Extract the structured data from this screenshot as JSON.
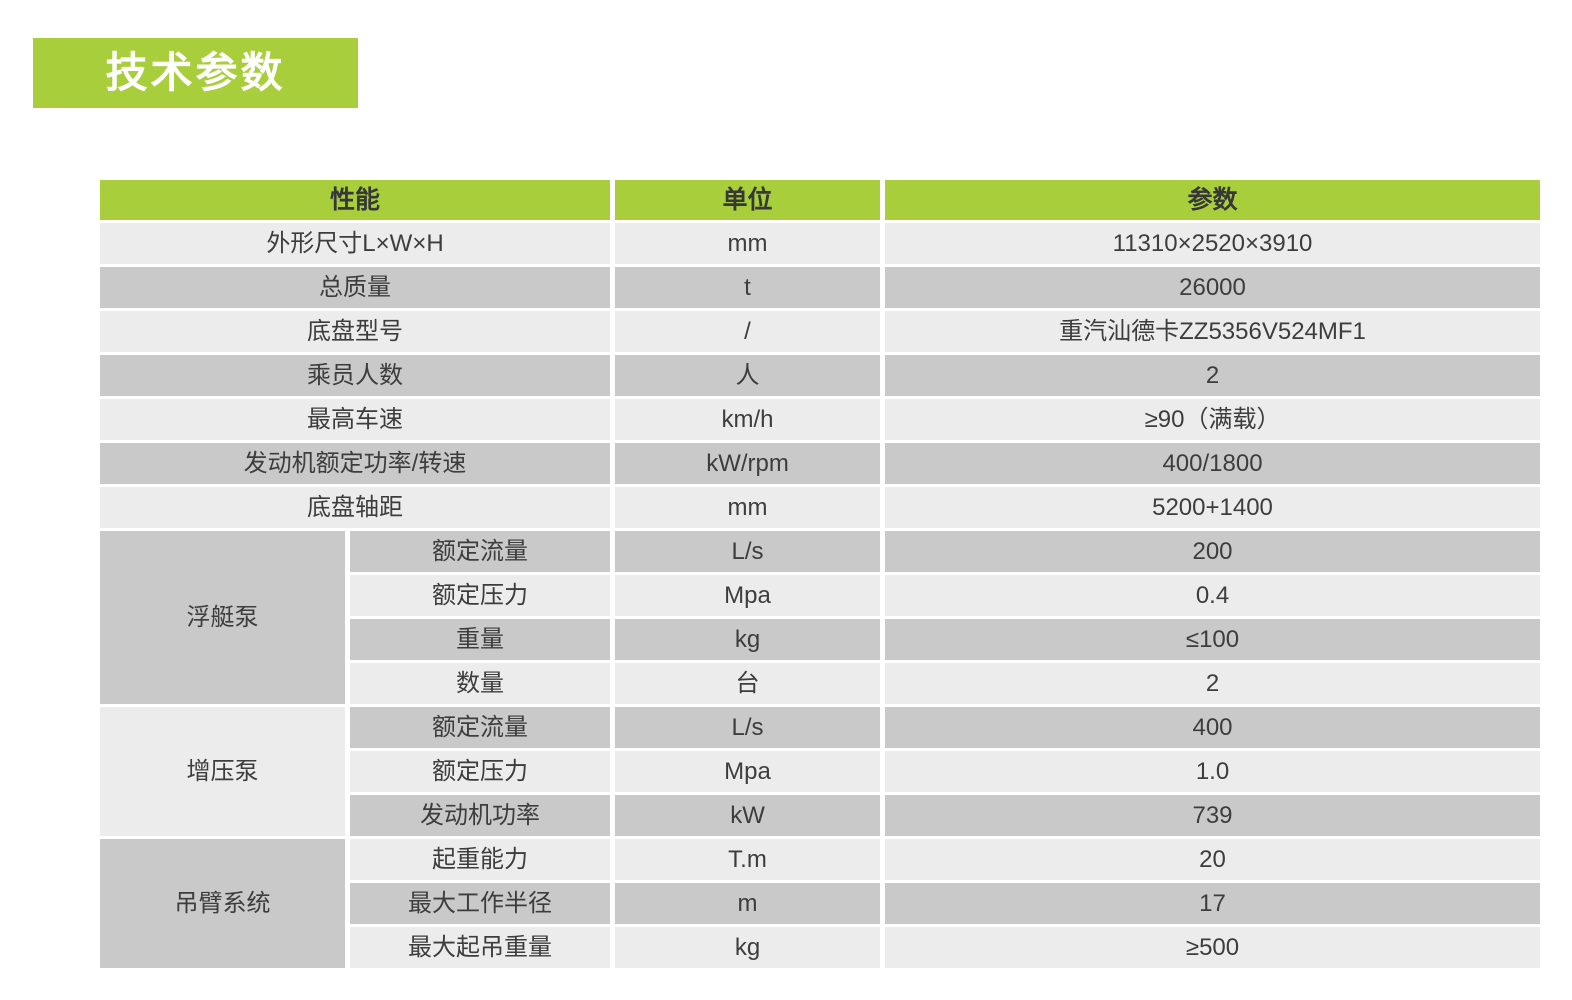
{
  "title": "技术参数",
  "colors": {
    "green": "#a8ce3b",
    "row_light": "#ececec",
    "row_dark": "#c9c9c9",
    "text": "#3d3d3d",
    "title_text": "#ffffff"
  },
  "table": {
    "headers": [
      "性能",
      "单位",
      "参数"
    ],
    "rows": [
      {
        "label": "外形尺寸L×W×H",
        "unit": "mm",
        "value": "11310×2520×3910",
        "shade": "light"
      },
      {
        "label": "总质量",
        "unit": "t",
        "value": "26000",
        "shade": "dark"
      },
      {
        "label": "底盘型号",
        "unit": "/",
        "value": "重汽汕德卡ZZ5356V524MF1",
        "shade": "light"
      },
      {
        "label": "乘员人数",
        "unit": "人",
        "value": "2",
        "shade": "dark"
      },
      {
        "label": "最高车速",
        "unit": "km/h",
        "value": "≥90（满载）",
        "shade": "light"
      },
      {
        "label": "发动机额定功率/转速",
        "unit": "kW/rpm",
        "value": "400/1800",
        "shade": "dark"
      },
      {
        "label": "底盘轴距",
        "unit": "mm",
        "value": "5200+1400",
        "shade": "light"
      },
      {
        "group": "浮艇泵",
        "group_span": 4,
        "group_shade": "dark",
        "sub": true,
        "label": "额定流量",
        "unit": "L/s",
        "value": "200",
        "shade": "dark"
      },
      {
        "sub": true,
        "label": "额定压力",
        "unit": "Mpa",
        "value": "0.4",
        "shade": "light"
      },
      {
        "sub": true,
        "label": "重量",
        "unit": "kg",
        "value": "≤100",
        "shade": "dark"
      },
      {
        "sub": true,
        "label": "数量",
        "unit": "台",
        "value": "2",
        "shade": "light"
      },
      {
        "group": "增压泵",
        "group_span": 3,
        "group_shade": "light",
        "sub": true,
        "label": "额定流量",
        "unit": "L/s",
        "value": "400",
        "shade": "dark"
      },
      {
        "sub": true,
        "label": "额定压力",
        "unit": "Mpa",
        "value": "1.0",
        "shade": "light"
      },
      {
        "sub": true,
        "label": "发动机功率",
        "unit": "kW",
        "value": "739",
        "shade": "dark"
      },
      {
        "group": "吊臂系统",
        "group_span": 3,
        "group_shade": "dark",
        "sub": true,
        "label": "起重能力",
        "unit": "T.m",
        "value": "20",
        "shade": "light"
      },
      {
        "sub": true,
        "label": "最大工作半径",
        "unit": "m",
        "value": "17",
        "shade": "dark"
      },
      {
        "sub": true,
        "label": "最大起吊重量",
        "unit": "kg",
        "value": "≥500",
        "shade": "light"
      }
    ]
  }
}
